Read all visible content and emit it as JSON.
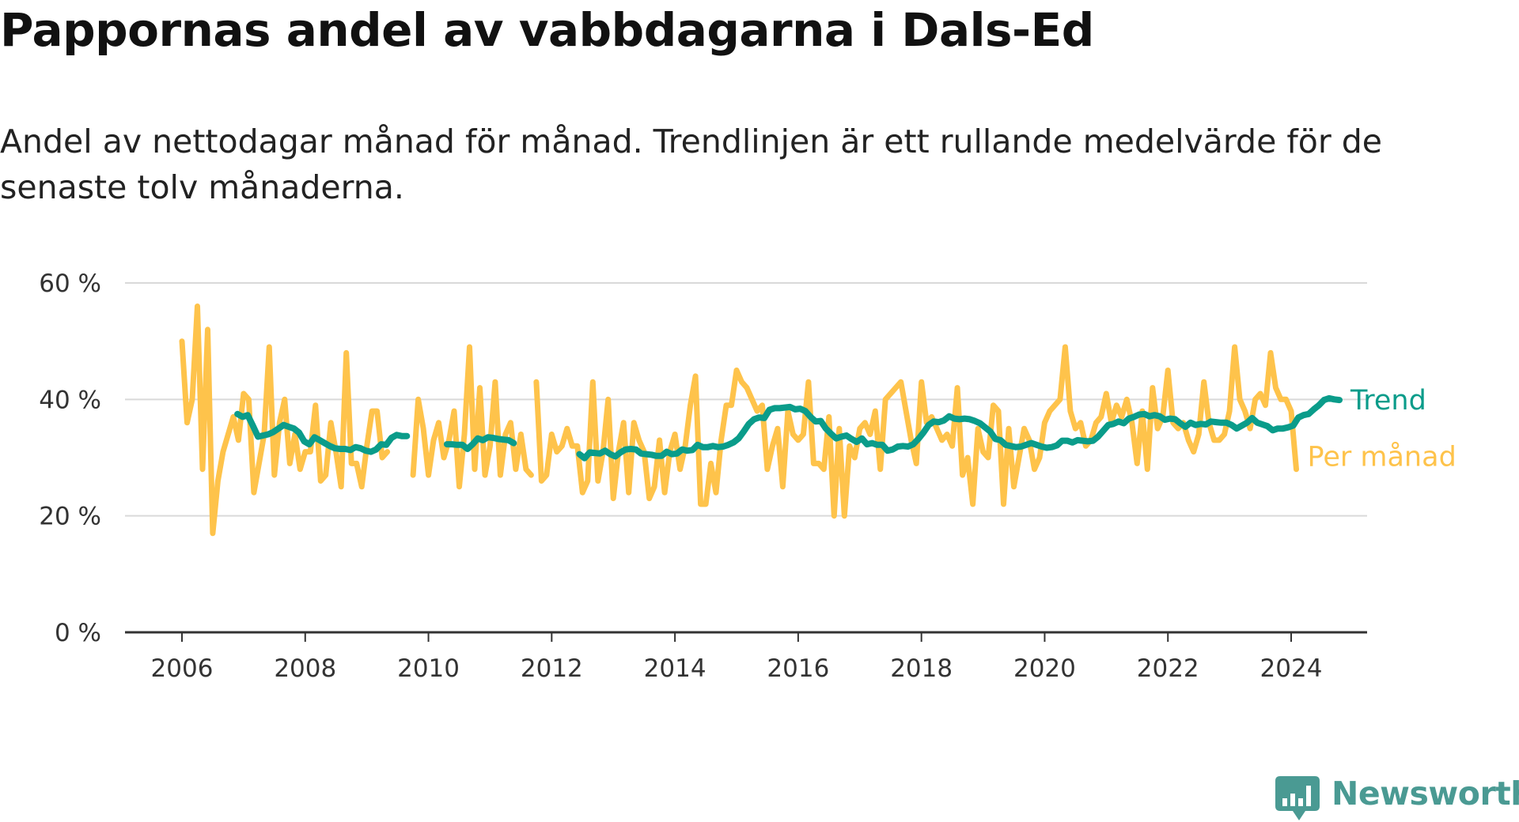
{
  "title": "Pappornas andel av vabbdagarna i Dals-Ed",
  "subtitle": "Andel av nettodagar månad för månad. Trendlinjen är ett rullande medelvärde för de senaste tolv månaderna.",
  "brand": {
    "name": "Newsworthy",
    "icon": "bar-chart-icon",
    "color": "#4a9a93"
  },
  "chart_data": {
    "type": "line",
    "xlim": [
      2005.5,
      2025.3
    ],
    "ylim": [
      0,
      60
    ],
    "y_ticks": [
      0,
      20,
      40,
      60
    ],
    "y_tick_labels": [
      "0 %",
      "20 %",
      "40 %",
      "60 %"
    ],
    "x_ticks": [
      2006,
      2008,
      2010,
      2012,
      2014,
      2016,
      2018,
      2020,
      2022,
      2024
    ],
    "x_tick_labels": [
      "2006",
      "2008",
      "2010",
      "2012",
      "2014",
      "2016",
      "2018",
      "2020",
      "2022",
      "2024"
    ],
    "grid": true,
    "series": [
      {
        "name": "Per månad",
        "color": "#fec34b",
        "segments": [
          {
            "start": 2006.0,
            "values": [
              50,
              36,
              40,
              56,
              28,
              52,
              17,
              26,
              31,
              34,
              37,
              33,
              41,
              40,
              24,
              29,
              34,
              49,
              27,
              36,
              40,
              29,
              34,
              28,
              31,
              31,
              39,
              26,
              27,
              36,
              31,
              25,
              48,
              29,
              29,
              25,
              32,
              38,
              38,
              30,
              31
            ]
          },
          {
            "start": 2009.75,
            "values": [
              27,
              40,
              35,
              27,
              33,
              36,
              30,
              33,
              38,
              25,
              34,
              49,
              28,
              42,
              27,
              32,
              43,
              27,
              34,
              36,
              28,
              34,
              28,
              27
            ]
          },
          {
            "start": 2011.75,
            "values": [
              43,
              26,
              27,
              34,
              31,
              32,
              35,
              32,
              32,
              24,
              26,
              43,
              26,
              31,
              40,
              23,
              31,
              36,
              24,
              36,
              33,
              31,
              23,
              25,
              33,
              24,
              31,
              34,
              28,
              32,
              39,
              44,
              22,
              22,
              29,
              24,
              33,
              39,
              39,
              45,
              43,
              42,
              40,
              38,
              39,
              28,
              32,
              35,
              25,
              38,
              34,
              33,
              34,
              43,
              29,
              29,
              28,
              37,
              20,
              35,
              20,
              32,
              30,
              35,
              36,
              34,
              38,
              28,
              40,
              41,
              42,
              43,
              38,
              33,
              29,
              43,
              36,
              37,
              35,
              33,
              34,
              32,
              42,
              27,
              30,
              22,
              35,
              31,
              30,
              39,
              38,
              22,
              35,
              25,
              30,
              35,
              33,
              28,
              30,
              36,
              38,
              39,
              40,
              49,
              38,
              35,
              36,
              32,
              33,
              36,
              37,
              41,
              36,
              39,
              37,
              40,
              36,
              29,
              38,
              28,
              42,
              35,
              37,
              45,
              36,
              35,
              36,
              33,
              31,
              34,
              43,
              36,
              33,
              33,
              34,
              38,
              49,
              40,
              38,
              35,
              40,
              41,
              39,
              48,
              42,
              40,
              40,
              38,
              28
            ]
          }
        ]
      },
      {
        "name": "Trend",
        "color": "#0a9c8a",
        "segments": [
          {
            "start": 2006.9,
            "values": [
              37.5,
              37,
              37.3,
              35.5,
              33.6,
              33.8,
              34,
              34.4,
              35,
              35.6,
              35.3,
              35,
              34.3,
              32.8,
              32.3,
              33.5,
              33,
              32.5,
              32,
              31.6,
              31.5,
              31.5,
              31.3,
              31.8,
              31.6,
              31.2,
              31,
              31.4,
              32.3,
              32.2,
              33.4,
              33.9,
              33.7,
              33.7
            ]
          },
          {
            "start": 2010.3,
            "values": [
              32.3,
              32.3,
              32.2,
              32.2,
              31.5,
              32.3,
              33.3,
              33,
              33.5,
              33.4,
              33.2,
              33.1,
              33,
              32.5
            ]
          },
          {
            "start": 2012.45,
            "values": [
              30.6,
              29.9,
              30.9,
              30.8,
              30.7,
              31.2,
              30.6,
              30.2,
              30.9,
              31.4,
              31.5,
              31.4,
              30.7,
              30.6,
              30.5,
              30.3,
              30.3,
              31,
              30.6,
              30.7,
              31.4,
              31.2,
              31.3,
              32.2,
              31.8,
              31.8,
              32,
              31.8,
              31.9,
              32.2,
              32.6,
              33.3,
              34.5,
              35.8,
              36.6,
              36.9,
              36.8,
              38.2,
              38.5,
              38.5,
              38.6,
              38.7,
              38.3,
              38.4,
              38,
              37,
              36.2,
              36.3,
              35,
              34.1,
              33.3,
              33.6,
              33.8,
              33.2,
              32.7,
              33.3,
              32.3,
              32.5,
              32.2,
              32.2,
              31.2,
              31.4,
              31.9,
              32,
              31.9,
              32.3,
              33.2,
              34.3,
              35.6,
              36.2,
              36.1,
              36.4,
              37.1,
              36.7,
              36.6,
              36.7,
              36.6,
              36.3,
              35.9,
              35.2,
              34.5,
              33.2,
              33,
              32.2,
              32,
              31.8,
              31.9,
              32.2,
              32.5,
              32.2,
              31.9,
              31.7,
              31.8,
              32.1,
              32.9,
              32.9,
              32.6,
              33,
              32.9,
              32.8,
              32.9,
              33.6,
              34.6,
              35.6,
              35.8,
              36.2,
              35.9,
              36.7,
              37,
              37.4,
              37.5,
              37.1,
              37.3,
              37.1,
              36.5,
              36.7,
              36.6,
              35.9,
              35.3,
              36,
              35.6,
              35.8,
              35.7,
              36.2,
              36.1,
              36,
              36,
              35.6,
              35,
              35.5,
              36,
              36.8,
              36,
              35.7,
              35.4,
              34.7,
              35,
              35,
              35.2,
              35.5,
              36.9,
              37.3,
              37.5,
              38.3,
              39,
              39.9,
              40.2,
              40,
              39.9
            ]
          }
        ]
      }
    ]
  }
}
